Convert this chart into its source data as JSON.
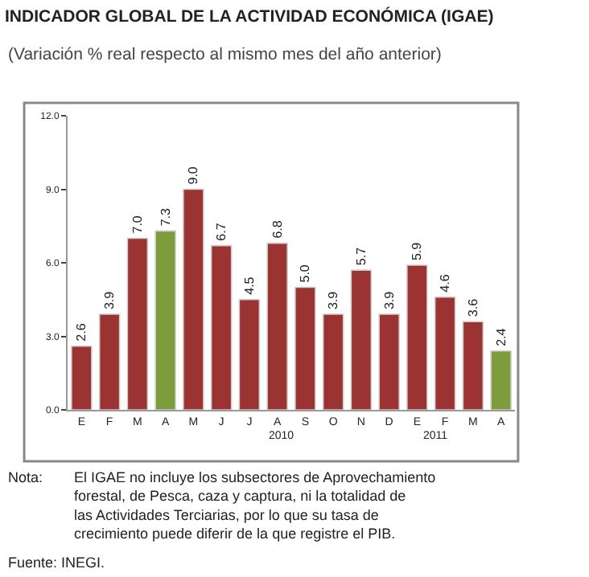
{
  "chart_data": {
    "type": "bar",
    "title": "INDICADOR GLOBAL DE LA ACTIVIDAD ECONÓMICA (IGAE)",
    "subtitle": "(Variación % real respecto al mismo mes del año anterior)",
    "categories": [
      "E",
      "F",
      "M",
      "A",
      "M",
      "J",
      "J",
      "A",
      "S",
      "O",
      "N",
      "D",
      "E",
      "F",
      "M",
      "A"
    ],
    "values": [
      2.6,
      3.9,
      7.0,
      7.3,
      9.0,
      6.7,
      4.5,
      6.8,
      5.0,
      3.9,
      5.7,
      3.9,
      5.9,
      4.6,
      3.6,
      2.4
    ],
    "colors": [
      "#9b3333",
      "#9b3333",
      "#9b3333",
      "#7d9c3c",
      "#9b3333",
      "#9b3333",
      "#9b3333",
      "#9b3333",
      "#9b3333",
      "#9b3333",
      "#9b3333",
      "#9b3333",
      "#9b3333",
      "#9b3333",
      "#9b3333",
      "#7d9c3c"
    ],
    "value_labels": [
      "2.6",
      "3.9",
      "7.0",
      "7.3",
      "9.0",
      "6.7",
      "4.5",
      "6.8",
      "5.0",
      "3.9",
      "5.7",
      "3.9",
      "5.9",
      "4.6",
      "3.6",
      "2.4"
    ],
    "ylim": [
      0,
      12
    ],
    "yticks": [
      {
        "value": 0,
        "label": "0.0"
      },
      {
        "value": 3,
        "label": "3.0"
      },
      {
        "value": 6,
        "label": "6.0"
      },
      {
        "value": 9,
        "label": "9.0"
      },
      {
        "value": 12,
        "label": "12.0"
      }
    ],
    "annotations": [
      "2010",
      "2011",
      "Nota:",
      "El IGAE no incluye los subsectores de Aprovechamiento forestal, de Pesca, caza y captura, ni la totalidad de las Actividades Terciarias, por lo que su tasa de crecimiento puede diferir de la que registre el PIB.",
      "Fuente: INEGI."
    ],
    "grid": false,
    "legend": false
  }
}
